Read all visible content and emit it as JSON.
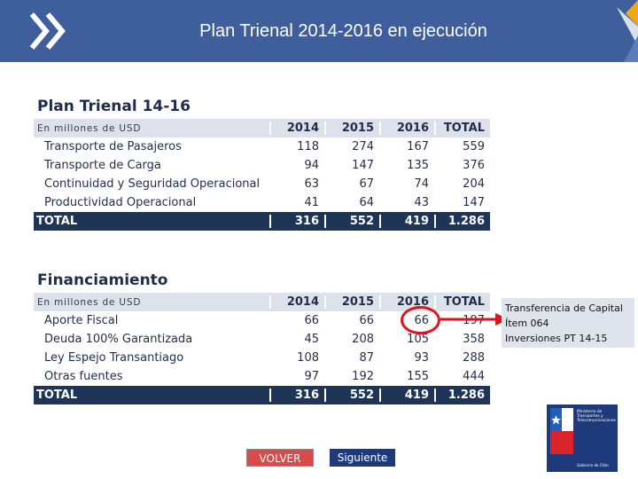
{
  "header": {
    "title": "Plan Trienal 2014-2016 en ejecución"
  },
  "plan": {
    "title": "Plan Trienal 14-16",
    "unit_label": "En millones de USD",
    "years": [
      "2014",
      "2015",
      "2016",
      "TOTAL"
    ],
    "rows": [
      {
        "label": "Transporte de Pasajeros",
        "values": [
          "118",
          "274",
          "167",
          "559"
        ]
      },
      {
        "label": "Transporte de Carga",
        "values": [
          "94",
          "147",
          "135",
          "376"
        ]
      },
      {
        "label": "Continuidad y Seguridad Operacional",
        "values": [
          "63",
          "67",
          "74",
          "204"
        ]
      },
      {
        "label": "Productividad Operacional",
        "values": [
          "41",
          "64",
          "43",
          "147"
        ]
      }
    ],
    "total": {
      "label": "TOTAL",
      "values": [
        "316",
        "552",
        "419",
        "1.286"
      ]
    }
  },
  "financing": {
    "title": "Financiamiento",
    "unit_label": "En millones de USD",
    "years": [
      "2014",
      "2015",
      "2016",
      "TOTAL"
    ],
    "rows": [
      {
        "label": "Aporte Fiscal",
        "values": [
          "66",
          "66",
          "66",
          "197"
        ]
      },
      {
        "label": "Deuda 100% Garantizada",
        "values": [
          "45",
          "208",
          "105",
          "358"
        ]
      },
      {
        "label": "Ley Espejo Transantiago",
        "values": [
          "108",
          "87",
          "93",
          "288"
        ]
      },
      {
        "label": "Otras fuentes",
        "values": [
          "97",
          "192",
          "155",
          "444"
        ]
      }
    ],
    "total": {
      "label": "TOTAL",
      "values": [
        "316",
        "552",
        "419",
        "1.286"
      ]
    }
  },
  "note": {
    "lines": [
      "Transferencia de Capital",
      "Ítem 064",
      "Inversiones PT 14-15"
    ]
  },
  "buttons": {
    "volver": "VOLVER",
    "siguiente": "Siguiente"
  },
  "logo": {
    "lines": [
      "Ministerio de",
      "Transportes y",
      "Telecomunicaciones"
    ],
    "bottom": "Gobierno de Chile"
  },
  "colors": {
    "header_bg": "#3e5f9c",
    "table_header_bg": "#dde2ea",
    "total_row_bg": "#1f3558",
    "highlight": "#e0121b",
    "volver_bg": "#d94a4a",
    "siguiente_bg": "#1f3a7a"
  },
  "icons": [
    "double-chevron-icon",
    "corner-arrow-icon",
    "arrow-icon",
    "logo-flag-icon"
  ]
}
